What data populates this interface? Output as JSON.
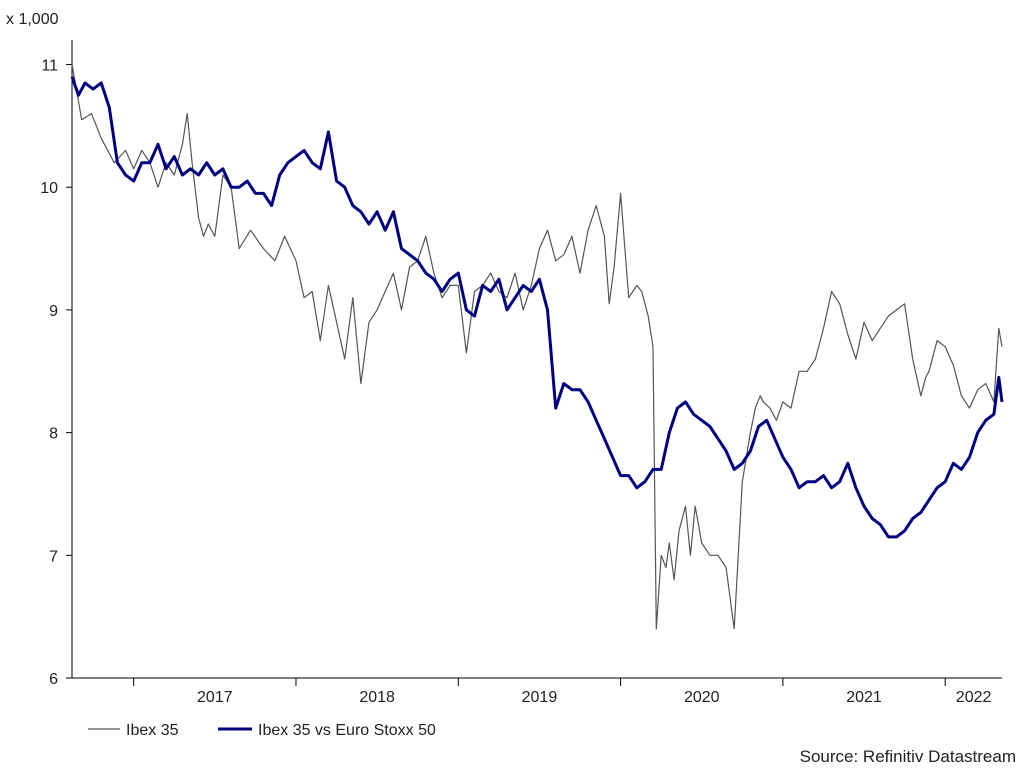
{
  "chart_data": {
    "type": "line",
    "unit_label": "x 1,000",
    "ylim": [
      6,
      11.2
    ],
    "yticks": [
      6,
      7,
      8,
      9,
      10,
      11
    ],
    "xlim": [
      2016.62,
      2022.35
    ],
    "xticks": [
      2017,
      2018,
      2019,
      2020,
      2021,
      2022
    ],
    "xtick_labels": [
      "2017",
      "2018",
      "2019",
      "2020",
      "2021",
      "2022"
    ],
    "grid": false,
    "legend_position": "bottom-left",
    "source": "Source: Refinitiv Datastream",
    "colors": {
      "ibex": "#555555",
      "ratio": "#000080",
      "axis": "#000000"
    },
    "series": [
      {
        "name": "Ibex 35",
        "x": [
          2016.62,
          2016.68,
          2016.74,
          2016.8,
          2016.88,
          2016.95,
          2017.0,
          2017.05,
          2017.1,
          2017.15,
          2017.2,
          2017.25,
          2017.3,
          2017.33,
          2017.36,
          2017.4,
          2017.43,
          2017.46,
          2017.5,
          2017.55,
          2017.6,
          2017.65,
          2017.72,
          2017.8,
          2017.87,
          2017.93,
          2018.0,
          2018.05,
          2018.1,
          2018.15,
          2018.2,
          2018.25,
          2018.3,
          2018.35,
          2018.4,
          2018.45,
          2018.5,
          2018.55,
          2018.6,
          2018.65,
          2018.7,
          2018.75,
          2018.8,
          2018.85,
          2018.9,
          2018.95,
          2019.0,
          2019.05,
          2019.1,
          2019.15,
          2019.2,
          2019.25,
          2019.3,
          2019.35,
          2019.4,
          2019.45,
          2019.5,
          2019.55,
          2019.6,
          2019.65,
          2019.7,
          2019.75,
          2019.8,
          2019.85,
          2019.9,
          2019.93,
          2019.96,
          2020.0,
          2020.05,
          2020.1,
          2020.13,
          2020.17,
          2020.2,
          2020.22,
          2020.25,
          2020.28,
          2020.3,
          2020.33,
          2020.36,
          2020.4,
          2020.43,
          2020.46,
          2020.5,
          2020.55,
          2020.6,
          2020.65,
          2020.7,
          2020.75,
          2020.8,
          2020.83,
          2020.86,
          2020.88,
          2020.92,
          2020.96,
          2021.0,
          2021.05,
          2021.1,
          2021.15,
          2021.2,
          2021.25,
          2021.3,
          2021.35,
          2021.4,
          2021.45,
          2021.5,
          2021.55,
          2021.6,
          2021.65,
          2021.7,
          2021.75,
          2021.8,
          2021.85,
          2021.88,
          2021.9,
          2021.95,
          2022.0,
          2022.05,
          2022.1,
          2022.15,
          2022.2,
          2022.25,
          2022.3,
          2022.33,
          2022.35
        ],
        "values": [
          11.0,
          10.55,
          10.6,
          10.4,
          10.2,
          10.3,
          10.15,
          10.3,
          10.2,
          10.0,
          10.2,
          10.1,
          10.35,
          10.6,
          10.2,
          9.75,
          9.6,
          9.7,
          9.6,
          10.1,
          10.0,
          9.5,
          9.65,
          9.5,
          9.4,
          9.6,
          9.4,
          9.1,
          9.15,
          8.75,
          9.2,
          8.9,
          8.6,
          9.1,
          8.4,
          8.9,
          9.0,
          9.15,
          9.3,
          9.0,
          9.35,
          9.4,
          9.6,
          9.3,
          9.1,
          9.2,
          9.2,
          8.65,
          9.15,
          9.2,
          9.3,
          9.15,
          9.1,
          9.3,
          9.0,
          9.2,
          9.5,
          9.65,
          9.4,
          9.45,
          9.6,
          9.3,
          9.65,
          9.85,
          9.6,
          9.05,
          9.35,
          9.95,
          9.1,
          9.2,
          9.15,
          8.95,
          8.7,
          6.4,
          7.0,
          6.9,
          7.1,
          6.8,
          7.2,
          7.4,
          7.0,
          7.4,
          7.1,
          7.0,
          7.0,
          6.9,
          6.4,
          7.6,
          8.0,
          8.2,
          8.3,
          8.25,
          8.2,
          8.1,
          8.25,
          8.2,
          8.5,
          8.5,
          8.6,
          8.85,
          9.15,
          9.05,
          8.8,
          8.6,
          8.9,
          8.75,
          8.85,
          8.95,
          9.0,
          9.05,
          8.6,
          8.3,
          8.45,
          8.5,
          8.75,
          8.7,
          8.55,
          8.3,
          8.2,
          8.35,
          8.4,
          8.25,
          8.85,
          8.7
        ]
      },
      {
        "name": "Ibex 35 vs Euro Stoxx 50",
        "x": [
          2016.62,
          2016.66,
          2016.7,
          2016.75,
          2016.8,
          2016.85,
          2016.9,
          2016.95,
          2017.0,
          2017.05,
          2017.1,
          2017.15,
          2017.2,
          2017.25,
          2017.3,
          2017.35,
          2017.4,
          2017.45,
          2017.5,
          2017.55,
          2017.6,
          2017.65,
          2017.7,
          2017.75,
          2017.8,
          2017.85,
          2017.9,
          2017.95,
          2018.0,
          2018.05,
          2018.1,
          2018.15,
          2018.2,
          2018.25,
          2018.3,
          2018.35,
          2018.4,
          2018.45,
          2018.5,
          2018.55,
          2018.6,
          2018.65,
          2018.7,
          2018.75,
          2018.8,
          2018.85,
          2018.9,
          2018.95,
          2019.0,
          2019.05,
          2019.1,
          2019.15,
          2019.2,
          2019.25,
          2019.3,
          2019.35,
          2019.4,
          2019.45,
          2019.5,
          2019.55,
          2019.6,
          2019.65,
          2019.7,
          2019.75,
          2019.8,
          2019.85,
          2019.9,
          2019.95,
          2020.0,
          2020.05,
          2020.1,
          2020.15,
          2020.2,
          2020.25,
          2020.3,
          2020.35,
          2020.4,
          2020.45,
          2020.5,
          2020.55,
          2020.6,
          2020.65,
          2020.7,
          2020.75,
          2020.8,
          2020.85,
          2020.9,
          2020.95,
          2021.0,
          2021.05,
          2021.1,
          2021.15,
          2021.2,
          2021.25,
          2021.3,
          2021.35,
          2021.4,
          2021.45,
          2021.5,
          2021.55,
          2021.6,
          2021.65,
          2021.7,
          2021.75,
          2021.8,
          2021.85,
          2021.9,
          2021.95,
          2022.0,
          2022.05,
          2022.1,
          2022.15,
          2022.2,
          2022.25,
          2022.3,
          2022.33,
          2022.35
        ],
        "values": [
          10.9,
          10.75,
          10.85,
          10.8,
          10.85,
          10.65,
          10.2,
          10.1,
          10.05,
          10.2,
          10.2,
          10.35,
          10.15,
          10.25,
          10.1,
          10.15,
          10.1,
          10.2,
          10.1,
          10.15,
          10.0,
          10.0,
          10.05,
          9.95,
          9.95,
          9.85,
          10.1,
          10.2,
          10.25,
          10.3,
          10.2,
          10.15,
          10.45,
          10.05,
          10.0,
          9.85,
          9.8,
          9.7,
          9.8,
          9.65,
          9.8,
          9.5,
          9.45,
          9.4,
          9.3,
          9.25,
          9.15,
          9.25,
          9.3,
          9.0,
          8.95,
          9.2,
          9.15,
          9.25,
          9.0,
          9.1,
          9.2,
          9.15,
          9.25,
          9.0,
          8.2,
          8.4,
          8.35,
          8.35,
          8.25,
          8.1,
          7.95,
          7.8,
          7.65,
          7.65,
          7.55,
          7.6,
          7.7,
          7.7,
          8.0,
          8.2,
          8.25,
          8.15,
          8.1,
          8.05,
          7.95,
          7.85,
          7.7,
          7.75,
          7.85,
          8.05,
          8.1,
          7.95,
          7.8,
          7.7,
          7.55,
          7.6,
          7.6,
          7.65,
          7.55,
          7.6,
          7.75,
          7.55,
          7.4,
          7.3,
          7.25,
          7.15,
          7.15,
          7.2,
          7.3,
          7.35,
          7.45,
          7.55,
          7.6,
          7.75,
          7.7,
          7.8,
          8.0,
          8.1,
          8.15,
          8.45,
          8.25
        ]
      }
    ]
  }
}
